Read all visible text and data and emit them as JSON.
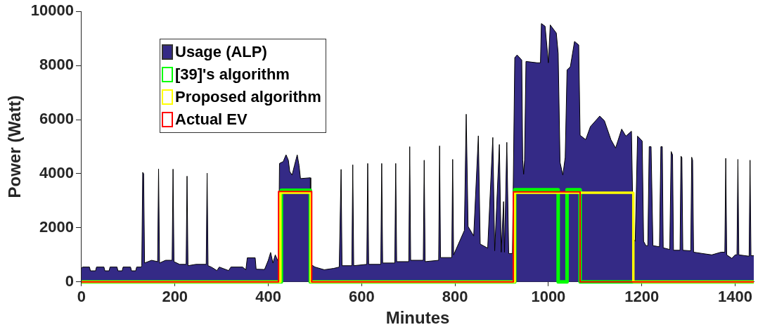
{
  "chart_data": {
    "type": "area",
    "xlabel": "Minutes",
    "ylabel": "Power (Watt)",
    "xlim": [
      0,
      1440
    ],
    "xticks": [
      0,
      200,
      400,
      600,
      800,
      1000,
      1200,
      1400
    ],
    "ylim": [
      0,
      10000
    ],
    "yticks": [
      0,
      2000,
      4000,
      6000,
      8000,
      10000
    ],
    "grid": false,
    "legend": "top left",
    "marker": "none",
    "line_style": "solid",
    "series": [
      {
        "name": "Usage (ALP)",
        "type": "area",
        "color": "#342a86",
        "x": [
          0,
          2,
          17,
          19,
          30,
          32,
          48,
          50,
          59,
          61,
          76,
          78,
          87,
          89,
          105,
          107,
          116,
          118,
          128,
          129,
          131,
          133,
          135,
          150,
          163,
          165,
          167,
          180,
          194,
          196,
          198,
          210,
          224,
          226,
          228,
          245,
          267,
          269,
          271,
          278,
          290,
          295,
          315,
          320,
          345,
          352,
          355,
          372,
          374,
          392,
          400,
          405,
          410,
          415,
          420,
          422,
          424,
          432,
          438,
          443,
          446,
          451,
          456,
          462,
          466,
          469,
          490,
          491,
          500,
          520,
          540,
          552,
          556,
          558,
          579,
          581,
          583,
          611,
          613,
          615,
          641,
          643,
          645,
          671,
          673,
          675,
          701,
          703,
          705,
          732,
          734,
          736,
          765,
          767,
          769,
          793,
          795,
          797,
          820,
          824,
          828,
          840,
          850,
          854,
          870,
          881,
          885,
          895,
          899,
          904,
          906,
          911,
          915,
          923,
          928,
          933,
          943,
          945,
          947,
          949,
          952,
          976,
          983,
          985,
          993,
          1000,
          1004,
          1017,
          1021,
          1025,
          1031,
          1036,
          1040,
          1047,
          1056,
          1065,
          1068,
          1080,
          1090,
          1110,
          1120,
          1134,
          1144,
          1157,
          1166,
          1178,
          1182,
          1186,
          1191,
          1201,
          1204,
          1209,
          1213,
          1216,
          1220,
          1224,
          1238,
          1241,
          1244,
          1246,
          1260,
          1263,
          1266,
          1268,
          1282,
          1284,
          1286,
          1288,
          1305,
          1307,
          1309,
          1311,
          1330,
          1350,
          1370,
          1378,
          1380,
          1382,
          1393,
          1400,
          1404,
          1406,
          1408,
          1430,
          1432,
          1434,
          1440
        ],
        "values": [
          500,
          550,
          550,
          410,
          410,
          550,
          550,
          410,
          410,
          550,
          550,
          410,
          410,
          550,
          550,
          410,
          410,
          550,
          550,
          600,
          4050,
          4000,
          700,
          800,
          750,
          4180,
          700,
          800,
          800,
          4170,
          750,
          650,
          650,
          3910,
          600,
          650,
          650,
          4020,
          600,
          550,
          420,
          550,
          420,
          550,
          550,
          450,
          890,
          890,
          470,
          460,
          800,
          1090,
          700,
          1000,
          800,
          800,
          4380,
          4450,
          4700,
          4500,
          4080,
          3950,
          4300,
          4700,
          4300,
          3820,
          3850,
          650,
          550,
          450,
          500,
          550,
          4160,
          600,
          600,
          4330,
          600,
          650,
          4380,
          650,
          650,
          4380,
          700,
          700,
          4380,
          750,
          750,
          5000,
          800,
          800,
          4500,
          750,
          800,
          5030,
          900,
          900,
          4530,
          1000,
          1900,
          6200,
          2050,
          1700,
          5400,
          1400,
          1250,
          5340,
          1150,
          5080,
          1100,
          2970,
          1100,
          5160,
          1050,
          1050,
          8290,
          8390,
          8200,
          4500,
          3980,
          4500,
          8150,
          8100,
          8100,
          9550,
          9450,
          8100,
          9500,
          9200,
          8450,
          4420,
          3950,
          4600,
          7840,
          7950,
          8890,
          8760,
          5420,
          5260,
          5740,
          6130,
          5960,
          5260,
          4950,
          5650,
          5390,
          5570,
          1600,
          1500,
          5390,
          5210,
          1500,
          1340,
          1340,
          5000,
          5000,
          1340,
          1300,
          5000,
          5000,
          1260,
          1200,
          4820,
          4700,
          1170,
          1170,
          4650,
          4600,
          1170,
          1150,
          4610,
          4500,
          1100,
          1050,
          1000,
          1100,
          1100,
          4570,
          1000,
          870,
          1000,
          1000,
          4530,
          1000,
          950,
          4500,
          970,
          970
        ]
      },
      {
        "name": "[39]'s algorithm",
        "type": "line",
        "color": "#00ff00",
        "x": [
          0,
          428,
          428,
          490,
          490,
          928,
          928,
          1021,
          1021,
          1040,
          1040,
          1068,
          1068,
          1440
        ],
        "values": [
          0,
          0,
          3390,
          3390,
          0,
          0,
          3410,
          3410,
          0,
          0,
          3410,
          3410,
          0,
          0
        ]
      },
      {
        "name": "Proposed algorithm",
        "type": "line",
        "color": "#ffff00",
        "x": [
          0,
          426,
          426,
          491,
          491,
          928,
          928,
          1182,
          1182,
          1440
        ],
        "values": [
          0,
          0,
          3300,
          3300,
          0,
          0,
          3300,
          3300,
          0,
          0
        ]
      },
      {
        "name": "Actual EV",
        "type": "line",
        "color": "#ff0000",
        "x": [
          0,
          422,
          422,
          493,
          493,
          925,
          925,
          1068,
          1068,
          1440
        ],
        "values": [
          0,
          0,
          3340,
          3340,
          0,
          0,
          3330,
          3330,
          0,
          0
        ]
      }
    ]
  }
}
